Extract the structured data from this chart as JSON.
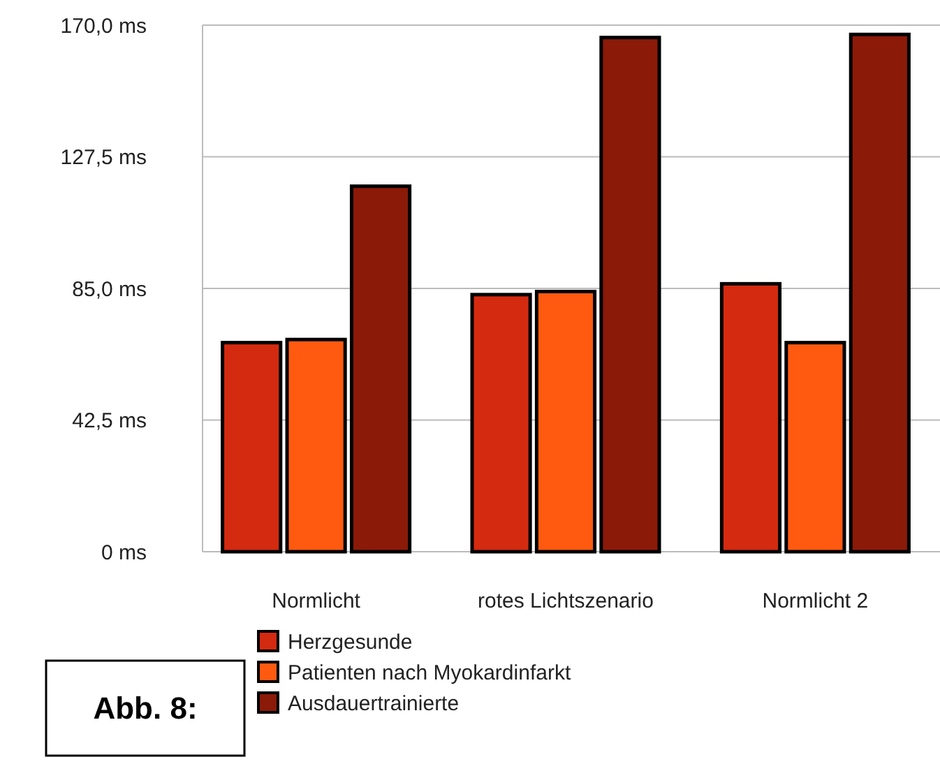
{
  "chart_data": {
    "type": "bar",
    "categories": [
      "Normlicht",
      "rotes Lichtszenario",
      "Normlicht 2"
    ],
    "series": [
      {
        "name": "Herzgesunde",
        "color": "#d42a10",
        "values": [
          67.5,
          83,
          86.5
        ]
      },
      {
        "name": "Patienten nach Myokardinfarkt",
        "color": "#ff5a10",
        "values": [
          68.5,
          84,
          67.5
        ]
      },
      {
        "name": "Ausdauertrainierte",
        "color": "#8b1a08",
        "values": [
          118,
          166,
          167
        ]
      }
    ],
    "ylim": [
      0,
      170
    ],
    "yticks": [
      {
        "value": 0,
        "label": "0 ms"
      },
      {
        "value": 42.5,
        "label": "42,5 ms"
      },
      {
        "value": 85,
        "label": "85,0 ms"
      },
      {
        "value": 127.5,
        "label": "127,5 ms"
      },
      {
        "value": 170,
        "label": "170,0 ms"
      }
    ],
    "grid": "y",
    "legend": "bottom",
    "annotations": [
      "Abb. 8:"
    ]
  }
}
